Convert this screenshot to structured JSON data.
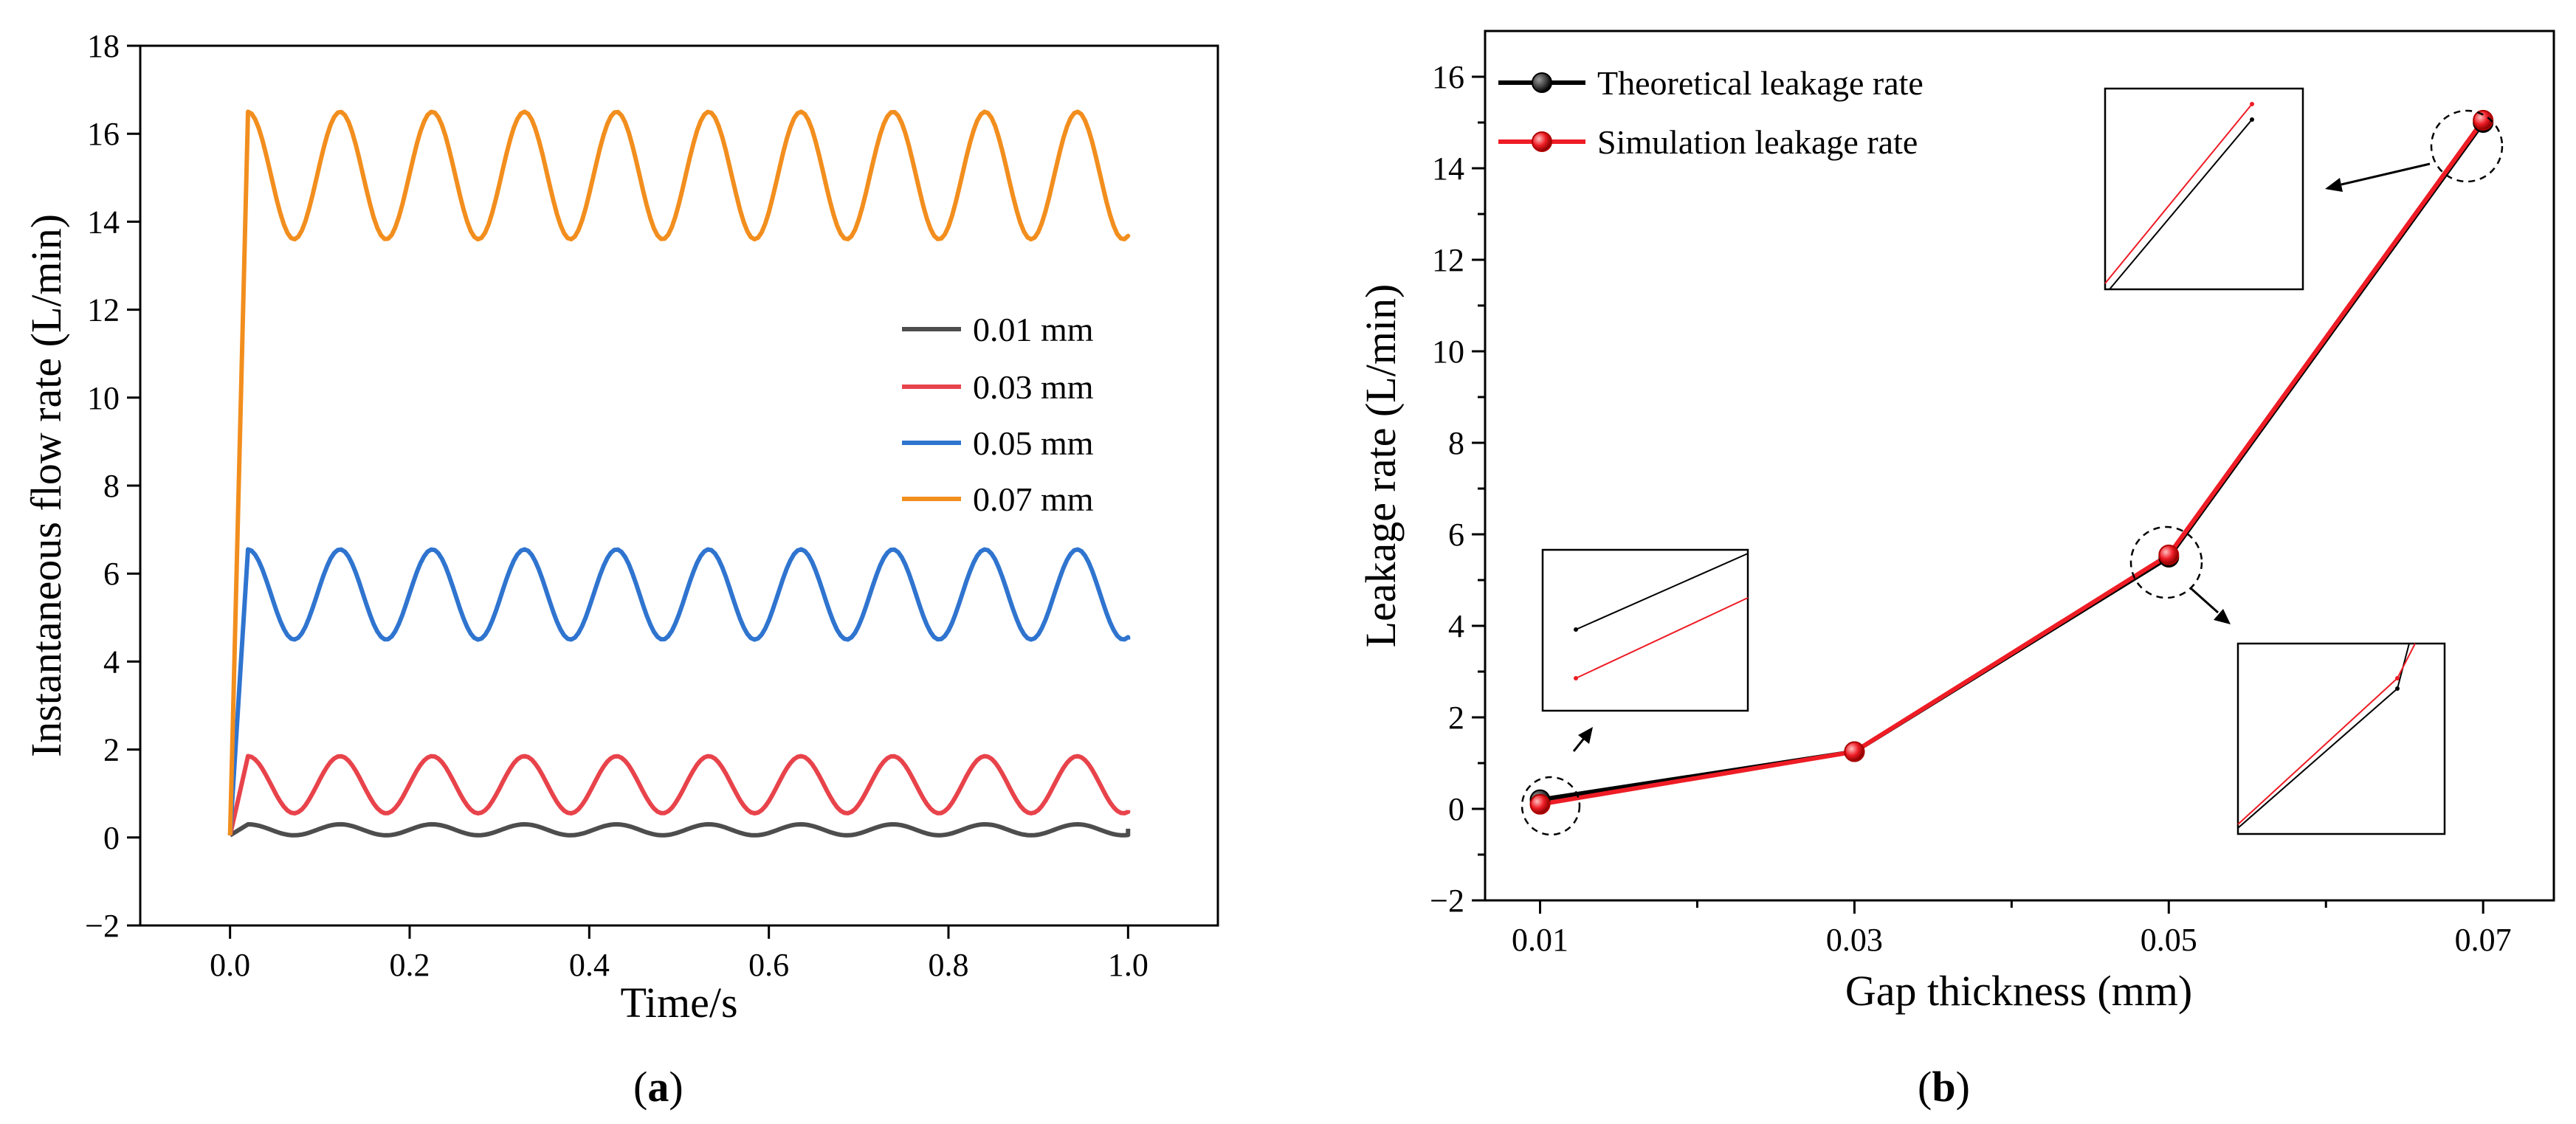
{
  "chart_data": [
    {
      "type": "line",
      "panel_label": "a",
      "xlabel": "Time/s",
      "ylabel": "Instantaneous flow rate (L/min)",
      "xlim": [
        -0.1,
        1.1
      ],
      "ylim": [
        -2,
        18
      ],
      "xticks": [
        0.0,
        0.2,
        0.4,
        0.6,
        0.8,
        1.0
      ],
      "xtick_labels": [
        "0.0",
        "0.2",
        "0.4",
        "0.6",
        "0.8",
        "1.0"
      ],
      "yticks": [
        -2,
        0,
        2,
        4,
        6,
        8,
        10,
        12,
        14,
        16,
        18
      ],
      "ytick_labels": [
        "−2",
        "0",
        "2",
        "4",
        "6",
        "8",
        "10",
        "12",
        "14",
        "16",
        "18"
      ],
      "legend_position": "center-right",
      "period": 0.1026,
      "series": [
        {
          "name": "0.01 mm",
          "color": "#4d4d4d",
          "start": 0.05,
          "ramp_end": 0.02,
          "high": 0.3,
          "low": 0.05,
          "end_value": 0.2
        },
        {
          "name": "0.03 mm",
          "color": "#e8434b",
          "start": 0.05,
          "ramp_end": 0.02,
          "high": 1.85,
          "low": 0.55,
          "end_value": 0.62
        },
        {
          "name": "0.05 mm",
          "color": "#2f74cf",
          "start": 0.05,
          "ramp_end": 0.02,
          "high": 6.55,
          "low": 4.5,
          "end_value": 4.5
        },
        {
          "name": "0.07 mm",
          "color": "#f28e1e",
          "start": 0.05,
          "ramp_end": 0.02,
          "high": 16.5,
          "low": 13.6,
          "end_value": 13.65
        }
      ]
    },
    {
      "type": "line",
      "panel_label": "b",
      "xlabel": "Gap thickness (mm)",
      "ylabel": "Leakage rate (L/min)",
      "xlim": [
        0.0065,
        0.0745
      ],
      "ylim": [
        -2,
        17
      ],
      "xticks": [
        0.01,
        0.03,
        0.05,
        0.07
      ],
      "xtick_labels": [
        "0.01",
        "0.03",
        "0.05",
        "0.07"
      ],
      "yticks": [
        -2,
        0,
        2,
        4,
        6,
        8,
        10,
        12,
        14,
        16
      ],
      "ytick_labels": [
        "−2",
        "0",
        "2",
        "4",
        "6",
        "8",
        "10",
        "12",
        "14",
        "16"
      ],
      "legend_position": "top-left",
      "x": [
        0.01,
        0.03,
        0.05,
        0.07
      ],
      "series": [
        {
          "name": "Theoretical leakage rate",
          "color": "#000000",
          "values": [
            0.2,
            1.25,
            5.5,
            15.0
          ]
        },
        {
          "name": "Simulation leakage rate",
          "color": "#ee1c25",
          "values": [
            0.1,
            1.25,
            5.55,
            15.05
          ]
        }
      ],
      "zoom_insets": [
        {
          "target_x": 0.01,
          "target_y": 0.1,
          "side": "upper-left"
        },
        {
          "target_x": 0.05,
          "target_y": 5.5,
          "side": "lower-right"
        },
        {
          "target_x": 0.07,
          "target_y": 15.0,
          "side": "left"
        }
      ]
    }
  ]
}
